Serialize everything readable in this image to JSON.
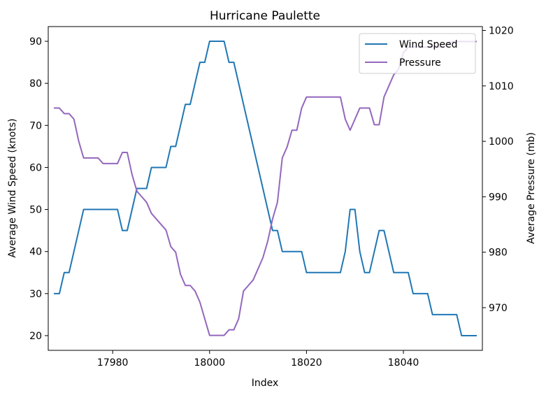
{
  "chart_data": {
    "type": "line",
    "title": "Hurricane Paulette",
    "xlabel": "Index",
    "ylabel": "Average Wind Speed (knots)",
    "y2label": "Average Pressure (mb)",
    "xlim": [
      17966.7,
      18056.3
    ],
    "ylim": [
      16.5,
      93.5
    ],
    "y2lim": [
      962.3,
      1020.7
    ],
    "xticks": [
      17980,
      18000,
      18020,
      18040
    ],
    "yticks": [
      20,
      30,
      40,
      50,
      60,
      70,
      80,
      90
    ],
    "y2ticks": [
      970,
      980,
      990,
      1000,
      1010,
      1020
    ],
    "grid": false,
    "legend_position": "top-right",
    "series": [
      {
        "name": "Wind Speed",
        "axis": "left",
        "color": "#1f77b4",
        "points": [
          [
            17968,
            30
          ],
          [
            17969,
            30
          ],
          [
            17970,
            35
          ],
          [
            17971,
            35
          ],
          [
            17974,
            50
          ],
          [
            17981,
            50
          ],
          [
            17982,
            45
          ],
          [
            17983,
            45
          ],
          [
            17985,
            55
          ],
          [
            17987,
            55
          ],
          [
            17988,
            60
          ],
          [
            17991,
            60
          ],
          [
            17992,
            65
          ],
          [
            17993,
            65
          ],
          [
            17995,
            75
          ],
          [
            17996,
            75
          ],
          [
            17998,
            85
          ],
          [
            17999,
            85
          ],
          [
            18000,
            90
          ],
          [
            18003,
            90
          ],
          [
            18004,
            85
          ],
          [
            18005,
            85
          ],
          [
            18013,
            45
          ],
          [
            18014,
            45
          ],
          [
            18015,
            40
          ],
          [
            18019,
            40
          ],
          [
            18020,
            35
          ],
          [
            18027,
            35
          ],
          [
            18028,
            40
          ],
          [
            18029,
            50
          ],
          [
            18030,
            50
          ],
          [
            18031,
            40
          ],
          [
            18032,
            35
          ],
          [
            18033,
            35
          ],
          [
            18035,
            45
          ],
          [
            18036,
            45
          ],
          [
            18038,
            35
          ],
          [
            18041,
            35
          ],
          [
            18042,
            30
          ],
          [
            18045,
            30
          ],
          [
            18046,
            25
          ],
          [
            18051,
            25
          ],
          [
            18052,
            20
          ],
          [
            18055,
            20
          ]
        ]
      },
      {
        "name": "Pressure",
        "axis": "right",
        "color": "#9467bd",
        "points": [
          [
            17968,
            1006
          ],
          [
            17969,
            1006
          ],
          [
            17970,
            1005
          ],
          [
            17971,
            1005
          ],
          [
            17972,
            1004
          ],
          [
            17973,
            1000
          ],
          [
            17974,
            997
          ],
          [
            17977,
            997
          ],
          [
            17978,
            996
          ],
          [
            17981,
            996
          ],
          [
            17982,
            998
          ],
          [
            17983,
            998
          ],
          [
            17984,
            994
          ],
          [
            17985,
            991
          ],
          [
            17986,
            990
          ],
          [
            17987,
            989
          ],
          [
            17988,
            987
          ],
          [
            17990,
            985
          ],
          [
            17991,
            984
          ],
          [
            17992,
            981
          ],
          [
            17993,
            980
          ],
          [
            17994,
            976
          ],
          [
            17995,
            974
          ],
          [
            17996,
            974
          ],
          [
            17997,
            973
          ],
          [
            17998,
            971
          ],
          [
            18000,
            965
          ],
          [
            18003,
            965
          ],
          [
            18004,
            966
          ],
          [
            18005,
            966
          ],
          [
            18006,
            968
          ],
          [
            18007,
            973
          ],
          [
            18008,
            974
          ],
          [
            18009,
            975
          ],
          [
            18011,
            979
          ],
          [
            18012,
            982
          ],
          [
            18013,
            986
          ],
          [
            18014,
            989
          ],
          [
            18015,
            997
          ],
          [
            18016,
            999
          ],
          [
            18017,
            1002
          ],
          [
            18018,
            1002
          ],
          [
            18019,
            1006
          ],
          [
            18020,
            1008
          ],
          [
            18027,
            1008
          ],
          [
            18028,
            1004
          ],
          [
            18029,
            1002
          ],
          [
            18031,
            1006
          ],
          [
            18033,
            1006
          ],
          [
            18034,
            1003
          ],
          [
            18035,
            1003
          ],
          [
            18036,
            1008
          ],
          [
            18037,
            1010
          ],
          [
            18038,
            1012
          ],
          [
            18039,
            1013
          ],
          [
            18040,
            1016
          ],
          [
            18041,
            1017
          ],
          [
            18047,
            1017
          ],
          [
            18048,
            1017
          ],
          [
            18050,
            1018
          ],
          [
            18055,
            1018
          ]
        ]
      }
    ]
  }
}
